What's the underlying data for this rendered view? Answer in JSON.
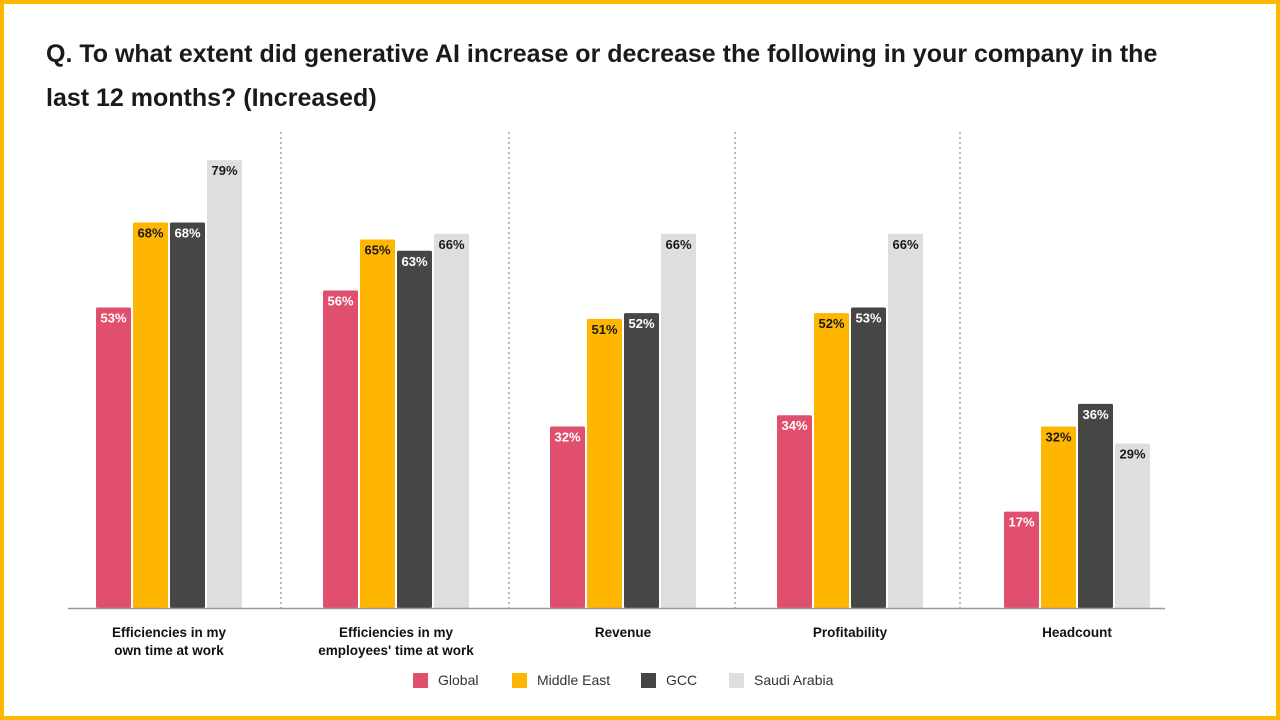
{
  "chart_data": {
    "type": "bar",
    "title": "Q. To what extent did generative AI increase or decrease the following in your company in the last 12 months? (Increased)",
    "categories": [
      "Efficiencies in my own time at work",
      "Efficiencies in my employees' time at work",
      "Revenue",
      "Profitability",
      "Headcount"
    ],
    "category_lines": [
      [
        "Efficiencies in my",
        "own time at work"
      ],
      [
        "Efficiencies in my",
        "employees' time at work"
      ],
      [
        "Revenue"
      ],
      [
        "Profitability"
      ],
      [
        "Headcount"
      ]
    ],
    "series": [
      {
        "name": "Global",
        "color": "#E0506E",
        "label_color": "#ffffff",
        "values": [
          53,
          56,
          32,
          34,
          17
        ]
      },
      {
        "name": "Middle East",
        "color": "#FFB600",
        "label_color": "#1a1a1a",
        "values": [
          68,
          65,
          51,
          52,
          32
        ]
      },
      {
        "name": "GCC",
        "color": "#464646",
        "label_color": "#ffffff",
        "values": [
          68,
          63,
          52,
          53,
          36
        ]
      },
      {
        "name": "Saudi Arabia",
        "color": "#DEDEDE",
        "label_color": "#1a1a1a",
        "values": [
          79,
          66,
          66,
          66,
          29
        ]
      }
    ],
    "value_suffix": "%",
    "ylim": [
      0,
      80
    ],
    "grid": false,
    "legend_position": "bottom"
  }
}
